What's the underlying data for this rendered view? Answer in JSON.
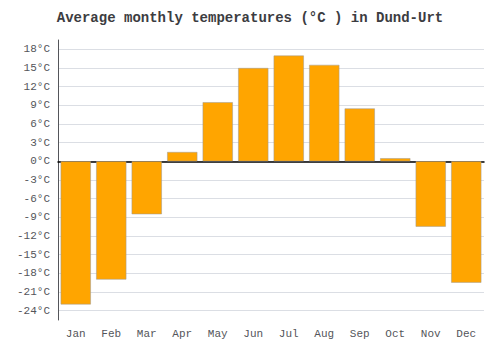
{
  "chart_data": {
    "type": "bar",
    "title": "Average monthly temperatures (°C ) in Dund-Urt",
    "categories": [
      "Jan",
      "Feb",
      "Mar",
      "Apr",
      "May",
      "Jun",
      "Jul",
      "Aug",
      "Sep",
      "Oct",
      "Nov",
      "Dec"
    ],
    "values": [
      -23,
      -19,
      -8.5,
      1.5,
      9.5,
      15,
      17,
      15.5,
      8.5,
      0.5,
      -10.5,
      -19.5
    ],
    "color": "#FFA500",
    "ylim": [
      -25.5,
      19.5
    ],
    "yticks": [
      {
        "value": -24,
        "label": "-24°C"
      },
      {
        "value": -21,
        "label": "-21°C"
      },
      {
        "value": -18,
        "label": "-18°C"
      },
      {
        "value": -15,
        "label": "-15°C"
      },
      {
        "value": -12,
        "label": "-12°C"
      },
      {
        "value": -9,
        "label": "-9°C"
      },
      {
        "value": -6,
        "label": "-6°C"
      },
      {
        "value": -3,
        "label": "-3°C"
      },
      {
        "value": 0,
        "label": "0°C"
      },
      {
        "value": 3,
        "label": "3°C"
      },
      {
        "value": 6,
        "label": "6°C"
      },
      {
        "value": 9,
        "label": "9°C"
      },
      {
        "value": 12,
        "label": "12°C"
      },
      {
        "value": 15,
        "label": "15°C"
      },
      {
        "value": 18,
        "label": "18°C"
      }
    ],
    "grid": true
  }
}
